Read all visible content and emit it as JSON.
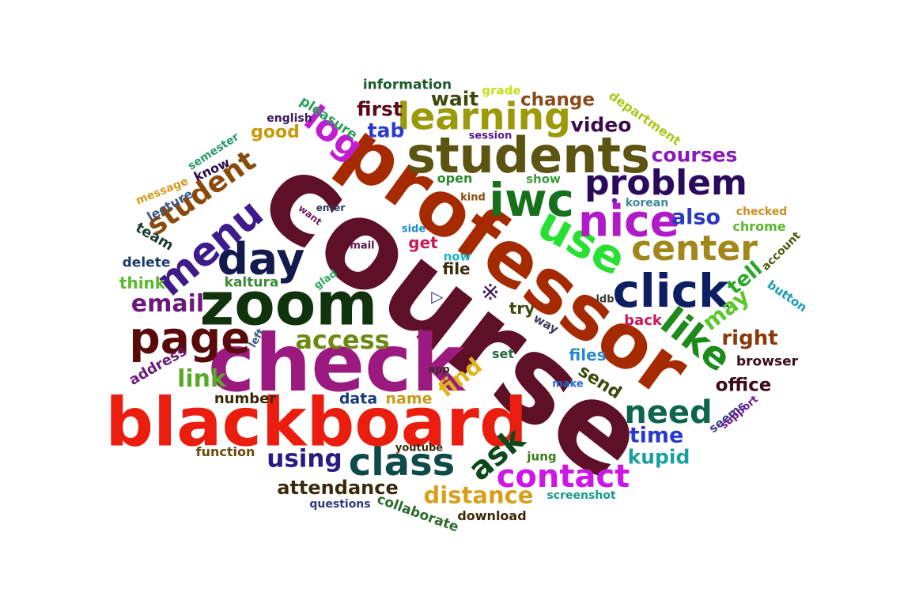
{
  "words": [
    {
      "text": "course",
      "color": "#5e1027"
    },
    {
      "text": "professor",
      "color": "#a52a00"
    },
    {
      "text": "check",
      "color": "#9b1a7f"
    },
    {
      "text": "blackboard",
      "color": "#ea1d0e"
    },
    {
      "text": "zoom",
      "color": "#10330e"
    },
    {
      "text": "students",
      "color": "#5c5411"
    },
    {
      "text": "iwc",
      "color": "#16701c"
    },
    {
      "text": "use",
      "color": "#28e032"
    },
    {
      "text": "nice",
      "color": "#b11ac9"
    },
    {
      "text": "click",
      "color": "#0d1f63"
    },
    {
      "text": "day",
      "color": "#131a4d"
    },
    {
      "text": "page",
      "color": "#5a0a0a"
    },
    {
      "text": "class",
      "color": "#0f4a4a"
    },
    {
      "text": "menu",
      "color": "#3d1b8a"
    },
    {
      "text": "learning",
      "color": "#9c9a0a"
    },
    {
      "text": "problem",
      "color": "#2b0a5e"
    },
    {
      "text": "center",
      "color": "#a2881a"
    },
    {
      "text": "like",
      "color": "#1d8a1a"
    },
    {
      "text": "contact",
      "color": "#cc17e6"
    },
    {
      "text": "ask",
      "color": "#0a4a1a"
    },
    {
      "text": "need",
      "color": "#0d6550"
    },
    {
      "text": "log",
      "color": "#c21cd0"
    },
    {
      "text": "student",
      "color": "#8a4a0a"
    },
    {
      "text": "access",
      "color": "#6e8a12"
    },
    {
      "text": "email",
      "color": "#6a1a7a"
    },
    {
      "text": "using",
      "color": "#2a1a82"
    },
    {
      "text": "distance",
      "color": "#d6a01a"
    },
    {
      "text": "attendance",
      "color": "#3a2a0a"
    },
    {
      "text": "link",
      "color": "#5aa82a"
    },
    {
      "text": "find",
      "color": "#e0b41a"
    },
    {
      "text": "first",
      "color": "#5a0a1a"
    },
    {
      "text": "tab",
      "color": "#2a3ad0"
    },
    {
      "text": "wait",
      "color": "#3a4a0a"
    },
    {
      "text": "video",
      "color": "#3a0a4a"
    },
    {
      "text": "change",
      "color": "#8a4a1a"
    },
    {
      "text": "courses",
      "color": "#8a1aba"
    },
    {
      "text": "also",
      "color": "#2a3ac0"
    },
    {
      "text": "may",
      "color": "#5ac82a"
    },
    {
      "text": "tell",
      "color": "#2aa82a"
    },
    {
      "text": "right",
      "color": "#8a3a0a"
    },
    {
      "text": "time",
      "color": "#2a3ad0"
    },
    {
      "text": "kupid",
      "color": "#1aa0a0"
    },
    {
      "text": "office",
      "color": "#3a0a1a"
    },
    {
      "text": "send",
      "color": "#3a4a0a"
    },
    {
      "text": "good",
      "color": "#c89a0a"
    },
    {
      "text": "information",
      "color": "#1a5a2a"
    },
    {
      "text": "pleasure",
      "color": "#2aa05a"
    },
    {
      "text": "english",
      "color": "#3a1a5a"
    },
    {
      "text": "grade",
      "color": "#c8e01a"
    },
    {
      "text": "department",
      "color": "#a8c81a"
    },
    {
      "text": "session",
      "color": "#5a1a8a"
    },
    {
      "text": "open",
      "color": "#2a8a2a"
    },
    {
      "text": "show",
      "color": "#3a9a3a"
    },
    {
      "text": "kind",
      "color": "#8a4a0a"
    },
    {
      "text": "korean",
      "color": "#3a8a9a"
    },
    {
      "text": "checked",
      "color": "#c8901a"
    },
    {
      "text": "chrome",
      "color": "#5ab82a"
    },
    {
      "text": "account",
      "color": "#4a5a0a"
    },
    {
      "text": "button",
      "color": "#1a9aba"
    },
    {
      "text": "browser",
      "color": "#3a0a1a"
    },
    {
      "text": "semester",
      "color": "#2a9a6a"
    },
    {
      "text": "know",
      "color": "#2a0a4a"
    },
    {
      "text": "message",
      "color": "#d89a1a"
    },
    {
      "text": "lecture",
      "color": "#3a5a8a"
    },
    {
      "text": "team",
      "color": "#1a3a2a"
    },
    {
      "text": "delete",
      "color": "#1a3a6a"
    },
    {
      "text": "think",
      "color": "#5ab82a"
    },
    {
      "text": "kaltura",
      "color": "#3a8a3a"
    },
    {
      "text": "glad",
      "color": "#2aa85a"
    },
    {
      "text": "address",
      "color": "#6a1a7a"
    },
    {
      "text": "left",
      "color": "#3a5a8a"
    },
    {
      "text": "number",
      "color": "#3a2a0a"
    },
    {
      "text": "data",
      "color": "#1a3a7a"
    },
    {
      "text": "name",
      "color": "#c89a1a"
    },
    {
      "text": "function",
      "color": "#6a4a0a"
    },
    {
      "text": "youtube",
      "color": "#3a2a0a"
    },
    {
      "text": "questions",
      "color": "#2a3a7a"
    },
    {
      "text": "collaborate",
      "color": "#2a6a2a"
    },
    {
      "text": "download",
      "color": "#3a2a0a"
    },
    {
      "text": "screenshot",
      "color": "#1a9a8a"
    },
    {
      "text": "jung",
      "color": "#3a7a1a"
    },
    {
      "text": "make",
      "color": "#2a6ad0"
    },
    {
      "text": "app",
      "color": "#3a2a2a"
    },
    {
      "text": "set",
      "color": "#2a6a3a"
    },
    {
      "text": "files",
      "color": "#2a8ad0"
    },
    {
      "text": "back",
      "color": "#c81a5a"
    },
    {
      "text": "ldb",
      "color": "#3a3a3a"
    },
    {
      "text": "way",
      "color": "#3a3a5a"
    },
    {
      "text": "try",
      "color": "#3a4a0a"
    },
    {
      "text": "seems",
      "color": "#3a3a8a"
    },
    {
      "text": "support",
      "color": "#6a1a8a"
    },
    {
      "text": "file",
      "color": "#3a2a0a"
    },
    {
      "text": "now",
      "color": "#1ab8c8"
    },
    {
      "text": "get",
      "color": "#c81a5a"
    },
    {
      "text": "side",
      "color": "#1a8ac8"
    },
    {
      "text": "want",
      "color": "#6a1a5a"
    },
    {
      "text": "mail",
      "color": "#5a1a4a"
    },
    {
      "text": "enter",
      "color": "#2a3a5a"
    }
  ],
  "glyphs": [
    {
      "char": "※",
      "color": "#3a1a5a",
      "icon": "reference-mark-icon"
    },
    {
      "char": "▷",
      "color": "#3a2a8a",
      "icon": "triangle-icon"
    },
    {
      "char": "•",
      "color": "#6a1aca",
      "icon": "dot-icon"
    }
  ]
}
